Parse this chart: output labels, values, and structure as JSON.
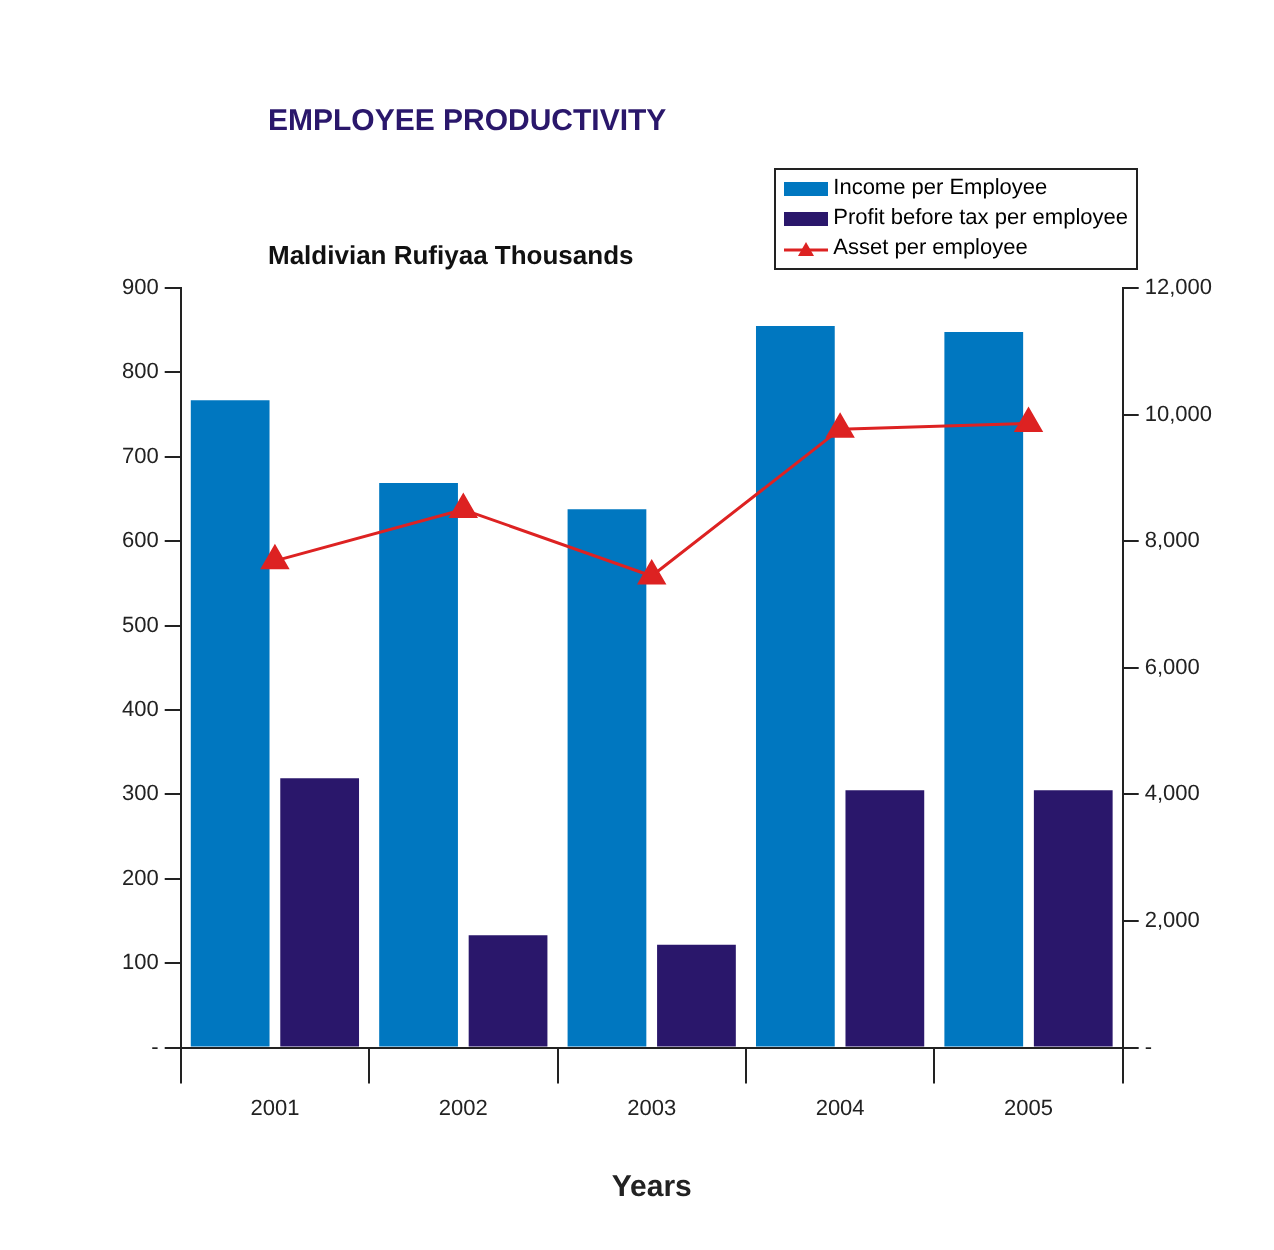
{
  "chart_data": {
    "type": "bar",
    "title": "EMPLOYEE PRODUCTIVITY",
    "ylabel": "Maldivian Rufiyaa Thousands",
    "xlabel": "Years",
    "categories": [
      "2001",
      "2002",
      "2003",
      "2004",
      "2005"
    ],
    "series": [
      {
        "name": "Income per Employee",
        "color": "#0077c0",
        "values": [
          767,
          669,
          638,
          855,
          848
        ]
      },
      {
        "name": "Profit before tax per employee",
        "color": "#2a176b",
        "values": [
          319,
          133,
          122,
          305,
          305
        ]
      },
      {
        "name": "Asset per employee",
        "color": "#dd2222",
        "type": "line",
        "axis": "y2",
        "marker": "triangle",
        "values": [
          7690,
          8500,
          7450,
          9770,
          9860
        ]
      }
    ],
    "ylim": [
      0,
      900
    ],
    "yticks": [
      {
        "value": 0,
        "label": "-"
      },
      100,
      200,
      300,
      400,
      500,
      600,
      700,
      800,
      900
    ],
    "y2lim": [
      0,
      12000
    ],
    "y2ticks": [
      {
        "value": 0,
        "label": "-"
      },
      {
        "value": 2000,
        "label": "2,000"
      },
      {
        "value": 4000,
        "label": "4,000"
      },
      {
        "value": 6000,
        "label": "6,000"
      },
      {
        "value": 8000,
        "label": "8,000"
      },
      {
        "value": 10000,
        "label": "10,000"
      },
      {
        "value": 12000,
        "label": "12,000"
      }
    ],
    "grid": false,
    "legend": "top right"
  }
}
